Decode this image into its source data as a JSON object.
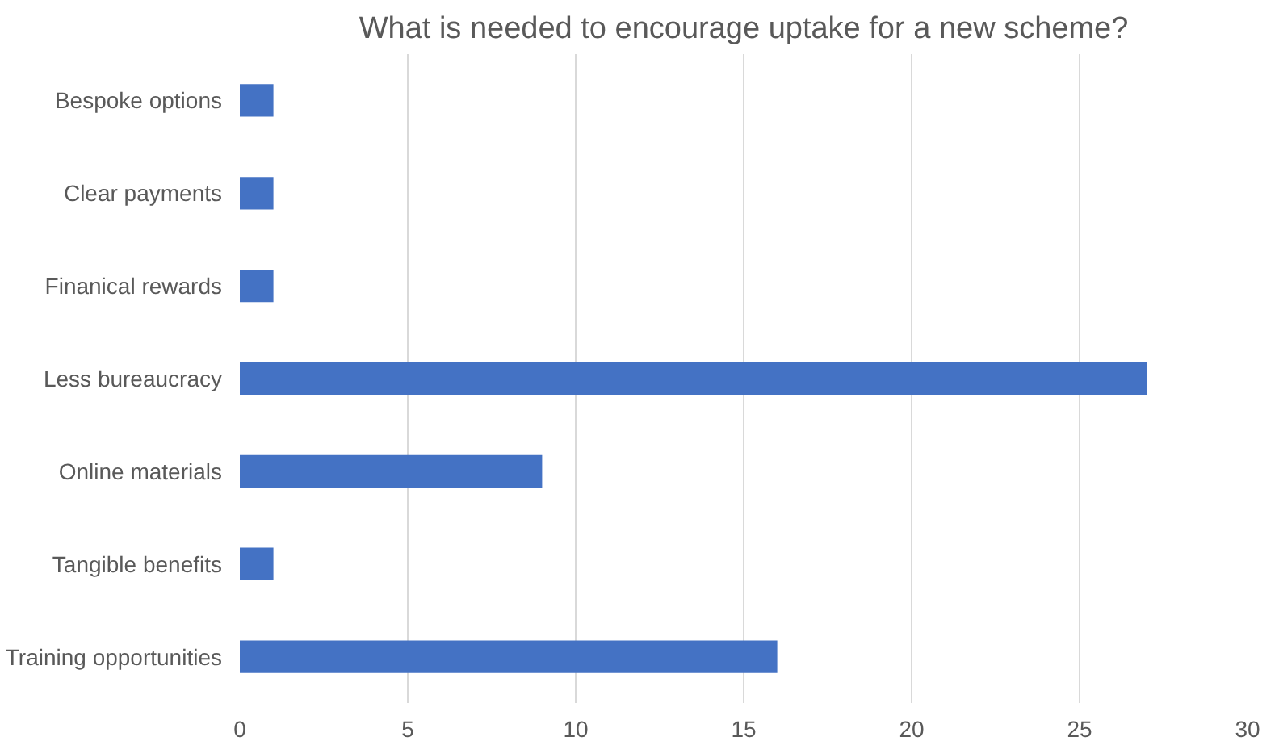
{
  "chart_data": {
    "type": "bar",
    "orientation": "horizontal",
    "title": "What is needed to encourage uptake for a new scheme?",
    "categories": [
      "Bespoke options",
      "Clear payments",
      "Finanical rewards",
      "Less bureaucracy",
      "Online materials",
      "Tangible benefits",
      "Training opportunities"
    ],
    "values": [
      1,
      1,
      1,
      27,
      9,
      1,
      16
    ],
    "color": "#4472c4",
    "xlim": [
      0,
      30
    ],
    "xticks": [
      0,
      5,
      10,
      15,
      20,
      25,
      30
    ],
    "grid": "x"
  }
}
